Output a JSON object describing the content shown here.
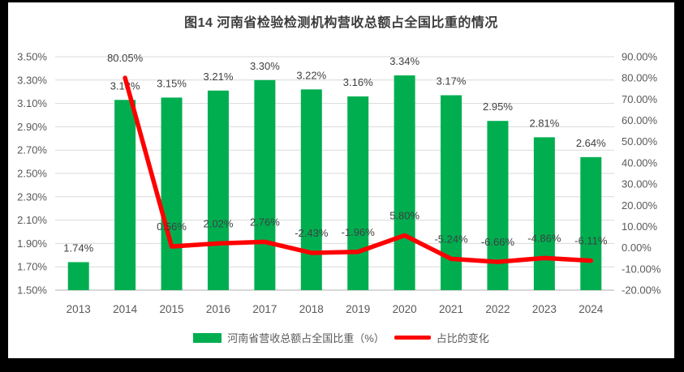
{
  "chart_data": {
    "type": "bar",
    "title": "图14 河南省检验检测机构营收总额占全国比重的情况",
    "categories": [
      "2013",
      "2014",
      "2015",
      "2016",
      "2017",
      "2018",
      "2019",
      "2020",
      "2021",
      "2022",
      "2023",
      "2024"
    ],
    "series": [
      {
        "name": "河南省营收总额占全国比重（%）",
        "type": "bar",
        "axis": "left",
        "color": "#00AE50",
        "values": [
          1.74,
          3.13,
          3.15,
          3.21,
          3.3,
          3.22,
          3.16,
          3.34,
          3.17,
          2.95,
          2.81,
          2.64
        ],
        "labels": [
          "1.74%",
          "3.13%",
          "3.15%",
          "3.21%",
          "3.30%",
          "3.22%",
          "3.16%",
          "3.34%",
          "3.17%",
          "2.95%",
          "2.81%",
          "2.64%"
        ]
      },
      {
        "name": "占比的变化",
        "type": "line",
        "axis": "right",
        "color": "#FF0000",
        "values": [
          null,
          80.05,
          0.56,
          2.02,
          2.76,
          -2.43,
          -1.96,
          5.8,
          -5.24,
          -6.66,
          -4.86,
          -6.11
        ],
        "labels": [
          null,
          "80.05%",
          "0.56%",
          "2.02%",
          "2.76%",
          "-2.43%",
          "-1.96%",
          "5.80%",
          "-5.24%",
          "-6.66%",
          "-4.86%",
          "-6.11%"
        ]
      }
    ],
    "left_axis": {
      "min": 1.5,
      "max": 3.5,
      "step": 0.2,
      "ticks": [
        "3.50%",
        "3.30%",
        "3.10%",
        "2.90%",
        "2.70%",
        "2.50%",
        "2.30%",
        "2.10%",
        "1.90%",
        "1.70%",
        "1.50%"
      ]
    },
    "right_axis": {
      "min": -20,
      "max": 90,
      "step": 10,
      "ticks": [
        "90.00%",
        "80.00%",
        "70.00%",
        "60.00%",
        "50.00%",
        "40.00%",
        "30.00%",
        "20.00%",
        "10.00%",
        "0.00%",
        "-10.00%",
        "-20.00%"
      ]
    },
    "grid": true,
    "legend_position": "bottom"
  },
  "colors": {
    "bar": "#00AE50",
    "line": "#FF0000",
    "grid": "#D9D9D9",
    "axis_line": "#BFBFBF",
    "tick_text": "#595959",
    "label_text": "#404040",
    "title_text": "#3B3B3B",
    "frame": "#000000",
    "background": "#FFFFFF"
  }
}
